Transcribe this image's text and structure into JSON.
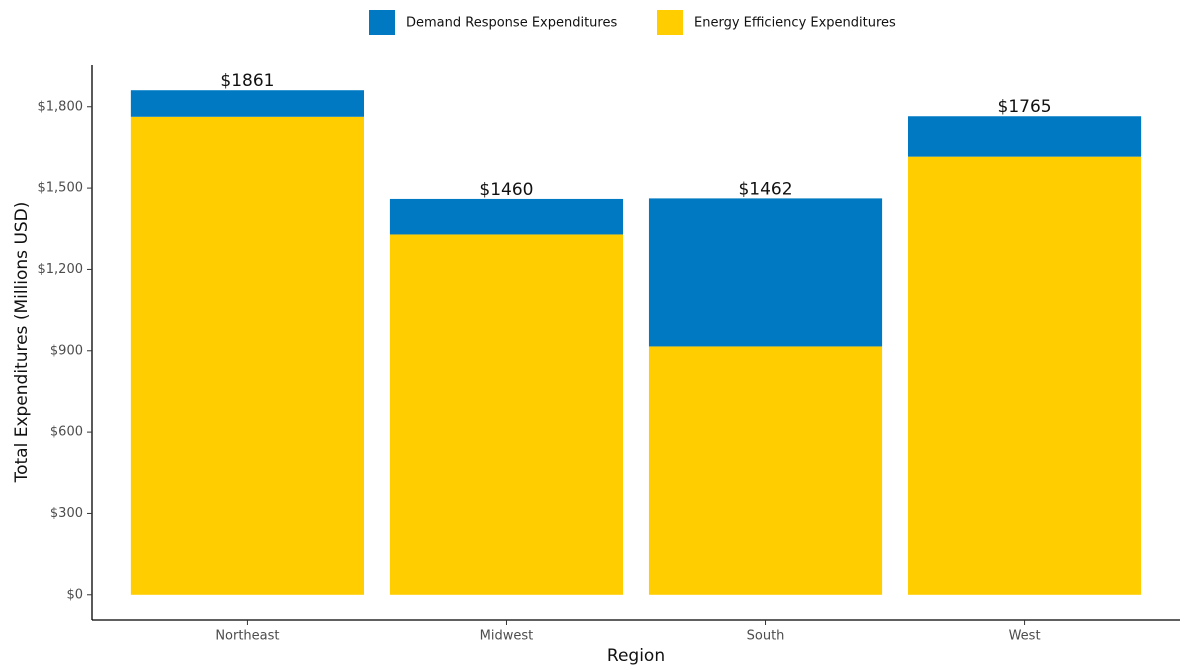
{
  "chart_data": {
    "type": "stacked_bar",
    "x_label": "Region",
    "y_label": "Total Expenditures (Millions USD)",
    "categories": [
      "Northeast",
      "Midwest",
      "South",
      "West"
    ],
    "series": [
      {
        "name": "Demand Response Expenditures",
        "color": "#0079C2",
        "values": [
          98,
          131,
          546,
          149
        ]
      },
      {
        "name": "Energy Efficiency Expenditures",
        "color": "#FFCD00",
        "values": [
          1763,
          1329,
          916,
          1616
        ]
      }
    ],
    "totals": [
      1861,
      1460,
      1462,
      1765
    ],
    "total_labels": [
      "$1861",
      "$1460",
      "$1462",
      "$1765"
    ],
    "ylim": [
      -93,
      1954
    ],
    "yticks": [
      {
        "value": 0,
        "label": "$0"
      },
      {
        "value": 300,
        "label": "$300"
      },
      {
        "value": 600,
        "label": "$600"
      },
      {
        "value": 900,
        "label": "$900"
      },
      {
        "value": 1200,
        "label": "$1,200"
      },
      {
        "value": 1500,
        "label": "$1,500"
      },
      {
        "value": 1800,
        "label": "$1,800"
      }
    ],
    "grid": false,
    "legend_position": "top"
  }
}
